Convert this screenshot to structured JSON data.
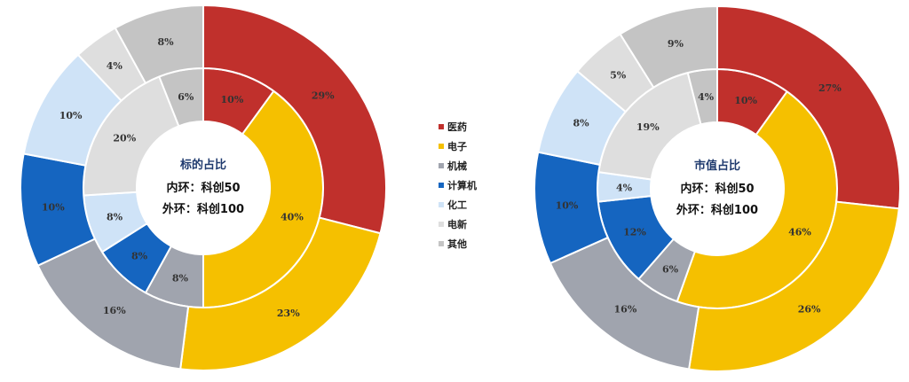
{
  "legend": [
    {
      "label": "医药",
      "color": "#C0302C"
    },
    {
      "label": "电子",
      "color": "#F5C000"
    },
    {
      "label": "机械",
      "color": "#A0A4AE"
    },
    {
      "label": "计算机",
      "color": "#1565C0"
    },
    {
      "label": "化工",
      "color": "#CFE3F7"
    },
    {
      "label": "电新",
      "color": "#DEDEDE"
    },
    {
      "label": "其他",
      "color": "#C4C4C4"
    }
  ],
  "chart_data": [
    {
      "type": "pie",
      "subtype": "nested-donut",
      "title": "标的占比",
      "center_lines": [
        "内环：科创50",
        "外环：科创100"
      ],
      "categories": [
        "医药",
        "电子",
        "机械",
        "计算机",
        "化工",
        "电新",
        "其他"
      ],
      "series": [
        {
          "name": "内环：科创50",
          "ring": "inner",
          "values": [
            10,
            40,
            8,
            8,
            8,
            20,
            6
          ]
        },
        {
          "name": "外环：科创100",
          "ring": "outer",
          "values": [
            29,
            23,
            16,
            10,
            10,
            4,
            8
          ]
        }
      ]
    },
    {
      "type": "pie",
      "subtype": "nested-donut",
      "title": "市值占比",
      "center_lines": [
        "内环：科创50",
        "外环：科创100"
      ],
      "categories": [
        "医药",
        "电子",
        "机械",
        "计算机",
        "化工",
        "电新",
        "其他"
      ],
      "series": [
        {
          "name": "内环：科创50",
          "ring": "inner",
          "values": [
            10,
            46,
            6,
            12,
            4,
            19,
            4
          ]
        },
        {
          "name": "外环：科创100",
          "ring": "outer",
          "values": [
            27,
            26,
            16,
            10,
            8,
            5,
            9
          ]
        }
      ]
    }
  ]
}
